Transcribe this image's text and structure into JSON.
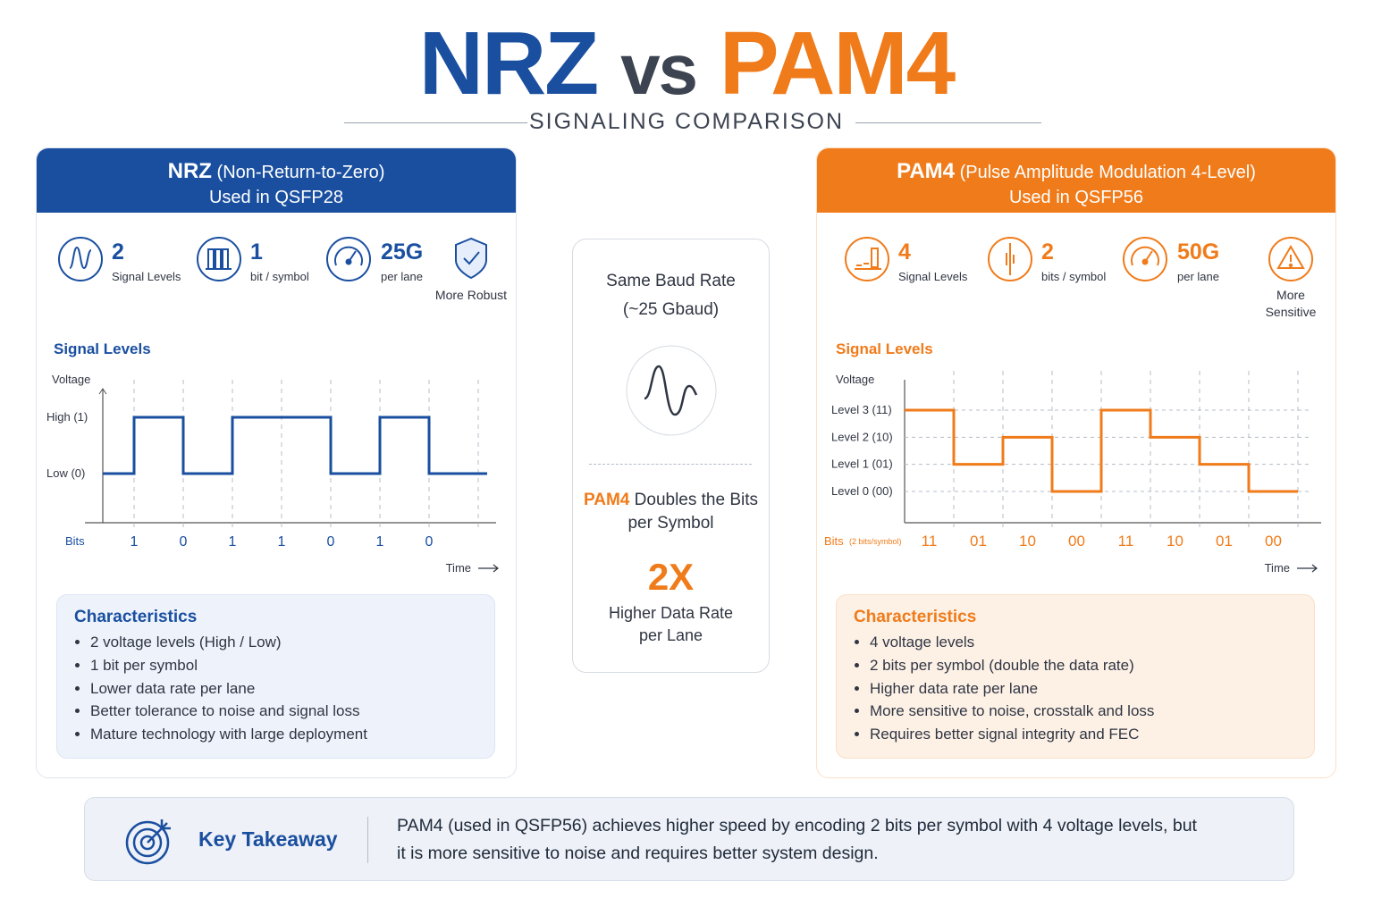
{
  "header": {
    "title_left": "NRZ",
    "title_vs": "vs",
    "title_right": "PAM4",
    "subtitle": "SIGNALING COMPARISON"
  },
  "panels": [
    {
      "name": "NRZ",
      "full_name": "(Non-Return-to-Zero)",
      "used_in": "Used in QSFP28",
      "stats": [
        {
          "value": "2",
          "label": "Signal Levels"
        },
        {
          "value": "1",
          "label": "bit / symbol"
        },
        {
          "value": "25G",
          "label": "per lane"
        },
        {
          "label": "More Robust"
        }
      ],
      "chart": {
        "title": "Signal Levels",
        "y_label": "Voltage",
        "levels": [
          "Low (0)",
          "High (1)"
        ],
        "bits_label": "Bits",
        "bits": [
          "1",
          "0",
          "1",
          "1",
          "0",
          "1",
          "0"
        ],
        "x_label": "Time"
      },
      "characteristics": {
        "title": "Characteristics",
        "items": [
          "2 voltage levels (High / Low)",
          "1 bit per symbol",
          "Lower data rate per lane",
          "Better tolerance to noise and signal loss",
          "Mature technology with large deployment"
        ]
      }
    },
    {
      "name": "PAM4",
      "full_name": "(Pulse Amplitude Modulation 4-Level)",
      "used_in": "Used in QSFP56",
      "stats": [
        {
          "value": "4",
          "label": "Signal Levels"
        },
        {
          "value": "2",
          "label": "bits / symbol"
        },
        {
          "value": "50G",
          "label": "per lane"
        },
        {
          "label": "More Sensitive"
        }
      ],
      "chart": {
        "title": "Signal Levels",
        "y_label": "Voltage",
        "levels": [
          "Level 0 (00)",
          "Level 1 (01)",
          "Level 2 (10)",
          "Level 3 (11)"
        ],
        "bits_label": "Bits",
        "bits_note": "(2 bits/symbol)",
        "bits": [
          "11",
          "01",
          "10",
          "00",
          "11",
          "10",
          "01",
          "00"
        ],
        "x_label": "Time"
      },
      "characteristics": {
        "title": "Characteristics",
        "items": [
          "4 voltage levels",
          "2 bits per symbol (double the data rate)",
          "Higher data rate per lane",
          "More sensitive to noise, crosstalk and loss",
          "Requires better signal integrity and FEC"
        ]
      }
    }
  ],
  "center": {
    "line1": "Same Baud Rate",
    "line2": "(~25 Gbaud)",
    "doubles_highlight": "PAM4",
    "doubles_text": "Doubles the Bits per Symbol",
    "multiplier": "2X",
    "multiplier_text": "Higher Data Rate per Lane"
  },
  "takeaway": {
    "title": "Key Takeaway",
    "text": "PAM4 (used in QSFP56) achieves higher speed by encoding 2 bits per symbol with 4 voltage levels, but it is more sensitive to noise and requires better system design."
  }
}
